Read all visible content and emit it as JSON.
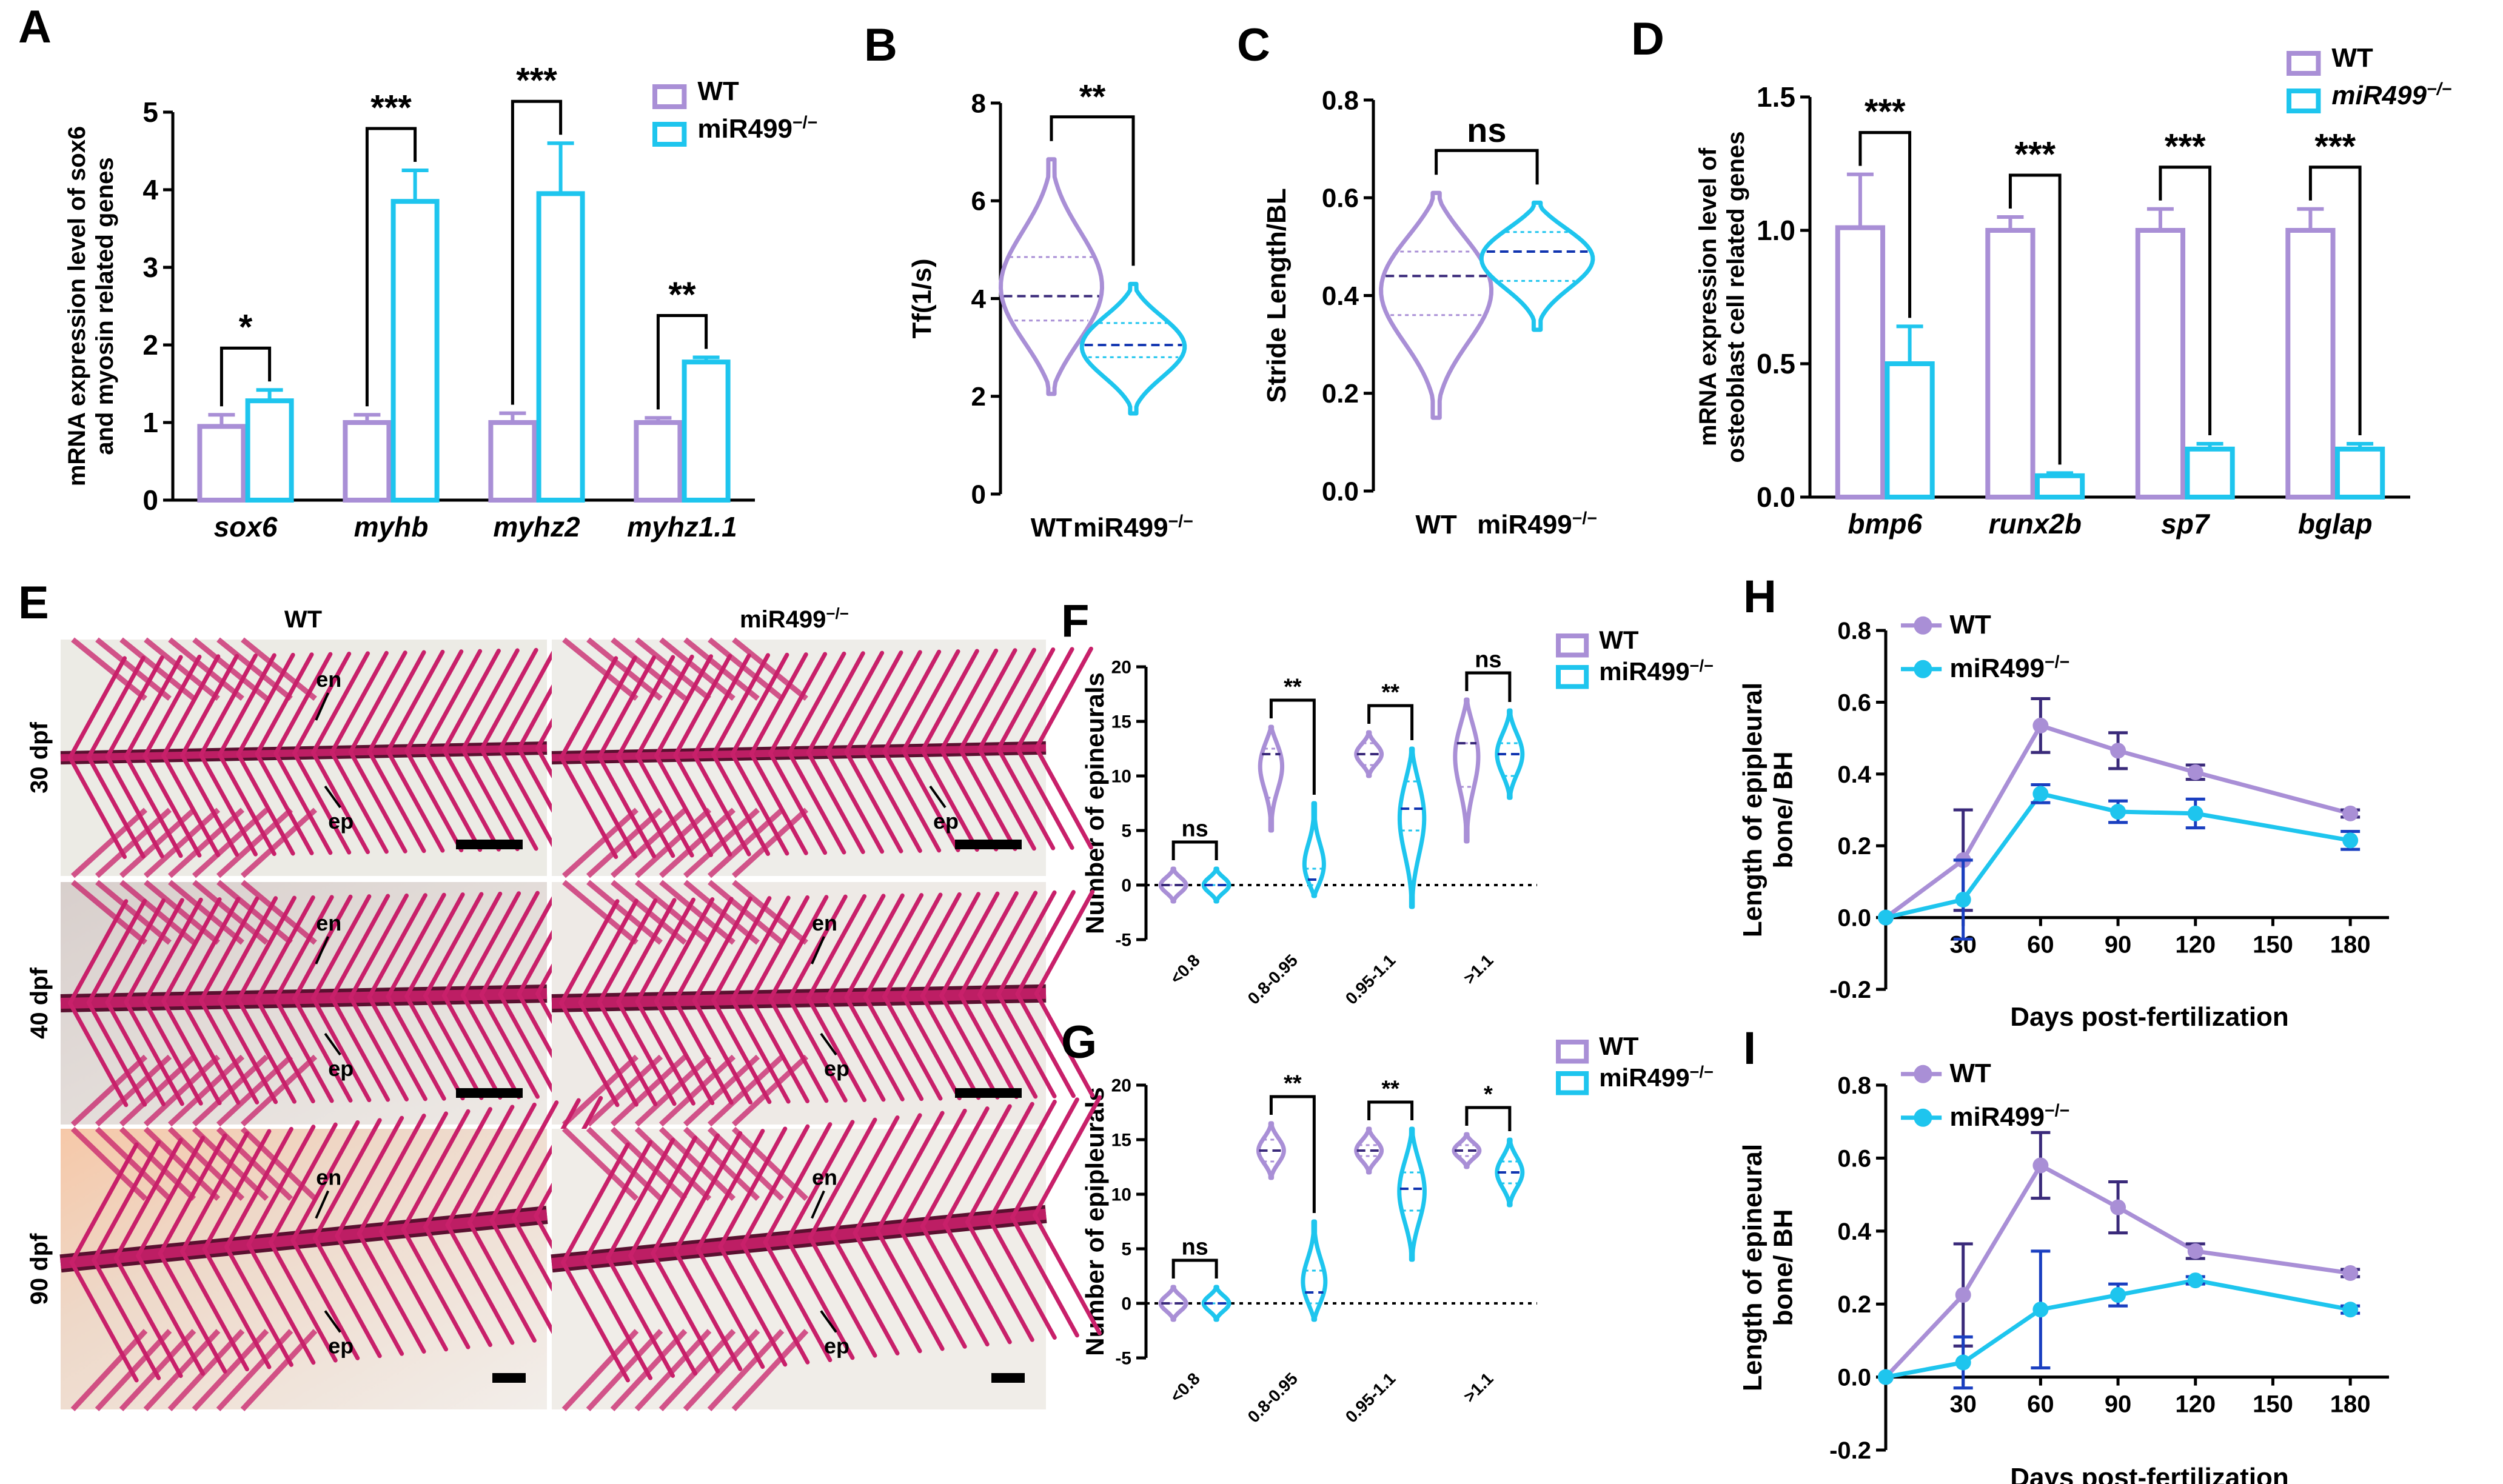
{
  "colors": {
    "wt": "#a98fd6",
    "ko": "#1ec5ee",
    "median_wt": "#3a2a7a",
    "median_ko": "#1034b0",
    "err_ko_line": "#1a3fc0",
    "axis": "#000000",
    "stain": "#c8206a",
    "bg_photo": "#e8e6e0"
  },
  "legend": {
    "wt": "WT",
    "ko": "miR499",
    "ko_sup": "−/−"
  },
  "chart_data": [
    {
      "panel": "A",
      "type": "bar",
      "ylabel_lines": [
        "mRNA expression level of sox6",
        "and myosin related  genes"
      ],
      "ylim": [
        0,
        5
      ],
      "yticks": [
        "0",
        "1",
        "2",
        "3",
        "4",
        "5"
      ],
      "categories": [
        "sox6",
        "myhb",
        "myhz2",
        "myhz1.1"
      ],
      "series": [
        {
          "name": "WT",
          "values": [
            0.95,
            1.0,
            1.0,
            1.0
          ],
          "errors": [
            0.15,
            0.1,
            0.12,
            0.06
          ]
        },
        {
          "name": "miR499−/−",
          "values": [
            1.28,
            3.85,
            3.95,
            1.78
          ],
          "errors": [
            0.14,
            0.4,
            0.65,
            0.06
          ]
        }
      ],
      "significance": [
        "*",
        "***",
        "***",
        "**"
      ]
    },
    {
      "panel": "B",
      "type": "violin",
      "ylabel": "Tf(1/s)",
      "ylim": [
        0,
        8
      ],
      "yticks": [
        "0",
        "2",
        "4",
        "6",
        "8"
      ],
      "categories": [
        "WT",
        "miR499−/−"
      ],
      "groups": [
        {
          "name": "WT",
          "min": 2.05,
          "max": 6.85,
          "q1": 3.55,
          "median": 4.05,
          "q3": 4.85
        },
        {
          "name": "miR499−/−",
          "min": 1.65,
          "max": 4.3,
          "q1": 2.8,
          "median": 3.05,
          "q3": 3.5
        }
      ],
      "significance": "**"
    },
    {
      "panel": "C",
      "type": "violin",
      "ylabel": "Stride Length/BL",
      "ylim": [
        0,
        0.8
      ],
      "yticks": [
        "0.0",
        "0.2",
        "0.4",
        "0.6",
        "0.8"
      ],
      "categories": [
        "WT",
        "miR499−/−"
      ],
      "groups": [
        {
          "name": "WT",
          "min": 0.15,
          "max": 0.61,
          "q1": 0.36,
          "median": 0.44,
          "q3": 0.49
        },
        {
          "name": "miR499−/−",
          "min": 0.33,
          "max": 0.59,
          "q1": 0.43,
          "median": 0.49,
          "q3": 0.53
        }
      ],
      "significance": "ns"
    },
    {
      "panel": "D",
      "type": "bar",
      "ylabel_lines": [
        "mRNA expression level of",
        "osteoblast cell related  genes"
      ],
      "ylim": [
        0,
        1.5
      ],
      "yticks": [
        "0.0",
        "0.5",
        "1.0",
        "1.5"
      ],
      "categories": [
        "bmp6",
        "runx2b",
        "sp7",
        "bglap"
      ],
      "series": [
        {
          "name": "WT",
          "values": [
            1.01,
            1.0,
            1.0,
            1.0
          ],
          "errors": [
            0.2,
            0.05,
            0.08,
            0.08
          ]
        },
        {
          "name": "miR499−/−",
          "values": [
            0.5,
            0.08,
            0.18,
            0.18
          ],
          "errors": [
            0.14,
            0.01,
            0.02,
            0.02
          ]
        }
      ],
      "significance": [
        "***",
        "***",
        "***",
        "***"
      ]
    },
    {
      "panel": "F",
      "type": "violin",
      "ylabel": "Number of epineurals",
      "ylim": [
        -5,
        20
      ],
      "yticks": [
        "-5",
        "0",
        "5",
        "10",
        "15",
        "20"
      ],
      "categories": [
        "<0.8",
        "0.8-0.95",
        "0.95-1.1",
        ">1.1"
      ],
      "groups": [
        {
          "name": "WT",
          "min": -1.5,
          "max": 1.5,
          "q1": 0,
          "median": 0,
          "q3": 0
        },
        {
          "name": "miR499−/−",
          "min": -1.5,
          "max": 1.5,
          "q1": 0,
          "median": 0,
          "q3": 0
        },
        {
          "name": "WT",
          "min": 5,
          "max": 14.5,
          "q1": 8,
          "median": 12,
          "q3": 12.5
        },
        {
          "name": "miR499−/−",
          "min": -1,
          "max": 7.5,
          "q1": 0,
          "median": 0.5,
          "q3": 1.5
        },
        {
          "name": "WT",
          "min": 10,
          "max": 14,
          "q1": 11,
          "median": 12,
          "q3": 13
        },
        {
          "name": "miR499−/−",
          "min": -2,
          "max": 12.5,
          "q1": 5,
          "median": 7,
          "q3": 9.5
        },
        {
          "name": "WT",
          "min": 4,
          "max": 17,
          "q1": 9,
          "median": 13,
          "q3": 13
        },
        {
          "name": "miR499−/−",
          "min": 8,
          "max": 16,
          "q1": 10,
          "median": 12,
          "q3": 13
        }
      ],
      "significance": [
        "ns",
        "**",
        "**",
        "ns"
      ]
    },
    {
      "panel": "G",
      "type": "violin",
      "ylabel": "Number of epipleurals",
      "ylim": [
        -5,
        20
      ],
      "yticks": [
        "-5",
        "0",
        "5",
        "10",
        "15",
        "20"
      ],
      "categories": [
        "<0.8",
        "0.8-0.95",
        "0.95-1.1",
        ">1.1"
      ],
      "groups": [
        {
          "name": "WT",
          "min": -1.5,
          "max": 1.5,
          "q1": 0,
          "median": 0,
          "q3": 0
        },
        {
          "name": "miR499−/−",
          "min": -1.5,
          "max": 1.5,
          "q1": 0,
          "median": 0,
          "q3": 0
        },
        {
          "name": "WT",
          "min": 11.5,
          "max": 16.5,
          "q1": 13,
          "median": 14,
          "q3": 15
        },
        {
          "name": "miR499−/−",
          "min": -1.5,
          "max": 7.5,
          "q1": 0,
          "median": 1,
          "q3": 3
        },
        {
          "name": "WT",
          "min": 12,
          "max": 16,
          "q1": 13.5,
          "median": 14,
          "q3": 14.5
        },
        {
          "name": "miR499−/−",
          "min": 4,
          "max": 16,
          "q1": 8.5,
          "median": 10.5,
          "q3": 12
        },
        {
          "name": "WT",
          "min": 12.5,
          "max": 15.5,
          "q1": 13.5,
          "median": 14,
          "q3": 14.5
        },
        {
          "name": "miR499−/−",
          "min": 9,
          "max": 15,
          "q1": 11,
          "median": 12,
          "q3": 13
        }
      ],
      "significance": [
        "ns",
        "**",
        "**",
        "*"
      ]
    },
    {
      "panel": "H",
      "type": "line",
      "xlabel": "Days post-fertilization",
      "ylabel_lines": [
        "Length of epipleural",
        "bone/ BH"
      ],
      "xlim": [
        0,
        195
      ],
      "ylim": [
        -0.2,
        0.8
      ],
      "xticks": [
        "30",
        "60",
        "90",
        "120",
        "150",
        "180"
      ],
      "yticks": [
        "-0.2",
        "0.0",
        "0.2",
        "0.4",
        "0.6",
        "0.8"
      ],
      "x": [
        0,
        30,
        60,
        90,
        120,
        180
      ],
      "series": [
        {
          "name": "WT",
          "values": [
            0,
            0.16,
            0.535,
            0.465,
            0.405,
            0.29
          ],
          "errors": [
            0,
            0.14,
            0.075,
            0.05,
            0.02,
            0.01
          ]
        },
        {
          "name": "miR499−/−",
          "values": [
            0,
            0.05,
            0.345,
            0.295,
            0.29,
            0.215
          ],
          "errors": [
            0,
            0.11,
            0.025,
            0.03,
            0.04,
            0.025
          ]
        }
      ]
    },
    {
      "panel": "I",
      "type": "line",
      "xlabel": "Days post-fertilization",
      "ylabel_lines": [
        "Length of epineural",
        "bone/ BH"
      ],
      "xlim": [
        0,
        195
      ],
      "ylim": [
        -0.2,
        0.8
      ],
      "xticks": [
        "30",
        "60",
        "90",
        "120",
        "150",
        "180"
      ],
      "yticks": [
        "-0.2",
        "0.0",
        "0.2",
        "0.4",
        "0.6",
        "0.8"
      ],
      "x": [
        0,
        30,
        60,
        90,
        120,
        180
      ],
      "series": [
        {
          "name": "WT",
          "values": [
            0,
            0.225,
            0.58,
            0.465,
            0.345,
            0.285
          ],
          "errors": [
            0,
            0.14,
            0.09,
            0.07,
            0.02,
            0.01
          ]
        },
        {
          "name": "miR499−/−",
          "values": [
            0,
            0.04,
            0.185,
            0.225,
            0.265,
            0.185
          ],
          "errors": [
            0,
            0.07,
            0.16,
            0.03,
            0.01,
            0.01
          ]
        }
      ]
    }
  ],
  "photo_panel": {
    "panel": "E",
    "column_labels": [
      "WT",
      "miR499"
    ],
    "column_sup": "−/−",
    "row_labels": [
      "30 dpf",
      "40 dpf",
      "90 dpf"
    ],
    "labels": {
      "en": "en",
      "ep": "ep"
    }
  }
}
